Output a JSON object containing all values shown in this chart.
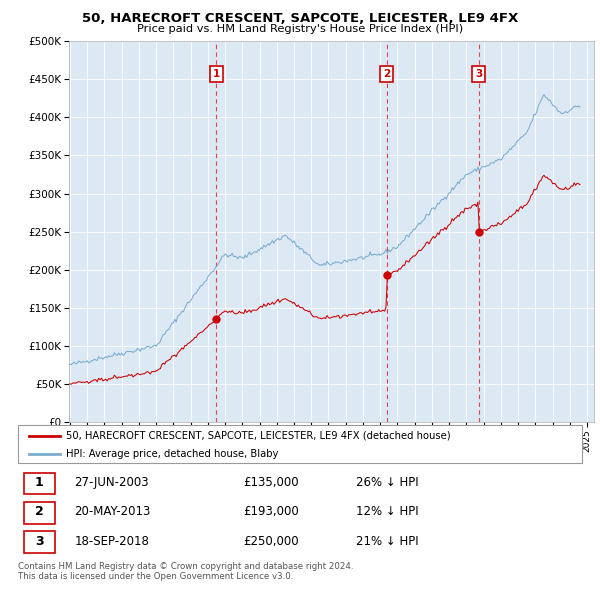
{
  "title": "50, HARECROFT CRESCENT, SAPCOTE, LEICESTER, LE9 4FX",
  "subtitle": "Price paid vs. HM Land Registry's House Price Index (HPI)",
  "legend_property": "50, HARECROFT CRESCENT, SAPCOTE, LEICESTER, LE9 4FX (detached house)",
  "legend_hpi": "HPI: Average price, detached house, Blaby",
  "property_color": "#cc0000",
  "hpi_color": "#7aadcf",
  "background_color": "#dce9f5",
  "ylim": [
    0,
    500000
  ],
  "yticks": [
    0,
    50000,
    100000,
    150000,
    200000,
    250000,
    300000,
    350000,
    400000,
    450000,
    500000
  ],
  "ytick_labels": [
    "£0",
    "£50K",
    "£100K",
    "£150K",
    "£200K",
    "£250K",
    "£300K",
    "£350K",
    "£400K",
    "£450K",
    "£500K"
  ],
  "xlim_start": 1994.95,
  "xlim_end": 2025.4,
  "sales": [
    {
      "num": 1,
      "date_num": 2003.487,
      "price": 135000,
      "label": "27-JUN-2003",
      "price_str": "£135,000",
      "pct": "26%",
      "direction": "↓"
    },
    {
      "num": 2,
      "date_num": 2013.382,
      "price": 193000,
      "label": "20-MAY-2013",
      "price_str": "£193,000",
      "pct": "12%",
      "direction": "↓"
    },
    {
      "num": 3,
      "date_num": 2018.717,
      "price": 250000,
      "label": "18-SEP-2018",
      "price_str": "£250,000",
      "pct": "21%",
      "direction": "↓"
    }
  ],
  "footer": "Contains HM Land Registry data © Crown copyright and database right 2024.\nThis data is licensed under the Open Government Licence v3.0."
}
